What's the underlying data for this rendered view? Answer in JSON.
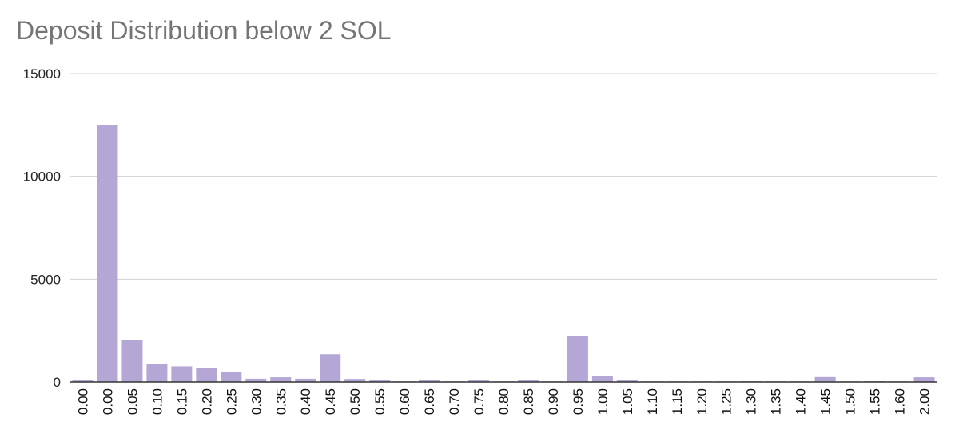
{
  "chart_data": {
    "type": "bar",
    "title": "Deposit Distribution below 2 SOL",
    "xlabel": "",
    "ylabel": "",
    "ylim": [
      0,
      15000
    ],
    "yticks": [
      "0",
      "5000",
      "10000",
      "15000"
    ],
    "grid": true,
    "legend": "none",
    "bar_color": "#b4a7d6",
    "categories": [
      "0.00",
      "0.00",
      "0.05",
      "0.10",
      "0.15",
      "0.20",
      "0.25",
      "0.30",
      "0.35",
      "0.40",
      "0.45",
      "0.50",
      "0.55",
      "0.60",
      "0.65",
      "0.70",
      "0.75",
      "0.80",
      "0.85",
      "0.90",
      "0.95",
      "1.00",
      "1.05",
      "1.10",
      "1.15",
      "1.20",
      "1.25",
      "1.30",
      "1.35",
      "1.40",
      "1.45",
      "1.50",
      "1.55",
      "1.60",
      "2.00"
    ],
    "values": [
      100,
      12500,
      2050,
      870,
      760,
      680,
      500,
      160,
      230,
      160,
      1350,
      150,
      90,
      30,
      90,
      30,
      90,
      30,
      80,
      30,
      2250,
      300,
      90,
      30,
      30,
      30,
      30,
      40,
      30,
      30,
      240,
      30,
      40,
      30,
      230
    ]
  }
}
